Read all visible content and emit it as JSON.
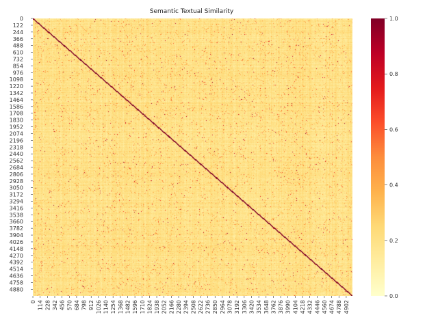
{
  "chart_data": {
    "type": "heatmap",
    "title": "Semantic Textual Similarity",
    "n": 5000,
    "value_range": [
      0.0,
      1.0
    ],
    "colormap": "YlOrRd",
    "colormap_stops": [
      "#ffffcc",
      "#ffeda0",
      "#fed976",
      "#feb24c",
      "#fd8d3c",
      "#fc4e2a",
      "#e31a1c",
      "#bd0026",
      "#800026"
    ],
    "typical_values": {
      "mean": 0.15,
      "min": 0.0,
      "max": 1.0
    },
    "y_tick_labels": [
      "0",
      "122",
      "244",
      "366",
      "488",
      "610",
      "732",
      "854",
      "976",
      "1098",
      "1220",
      "1342",
      "1464",
      "1586",
      "1708",
      "1830",
      "1952",
      "2074",
      "2196",
      "2318",
      "2440",
      "2562",
      "2684",
      "2806",
      "2928",
      "3050",
      "3172",
      "3294",
      "3416",
      "3538",
      "3660",
      "3782",
      "3904",
      "4026",
      "4148",
      "4270",
      "4392",
      "4514",
      "4636",
      "4758",
      "4880"
    ],
    "x_tick_labels": [
      "0",
      "114",
      "228",
      "342",
      "456",
      "570",
      "684",
      "798",
      "912",
      "1026",
      "1140",
      "1254",
      "1368",
      "1482",
      "1596",
      "1710",
      "1824",
      "1938",
      "2052",
      "2166",
      "2280",
      "2394",
      "2508",
      "2622",
      "2736",
      "2850",
      "2964",
      "3078",
      "3192",
      "3306",
      "3420",
      "3534",
      "3648",
      "3762",
      "3876",
      "3990",
      "4104",
      "4218",
      "4332",
      "4446",
      "4560",
      "4674",
      "4788",
      "4902"
    ],
    "colorbar_ticks": [
      "0.0",
      "0.2",
      "0.4",
      "0.6",
      "0.8",
      "1.0"
    ],
    "colorbar_values": [
      0.0,
      0.2,
      0.4,
      0.6,
      0.8,
      1.0
    ],
    "xlabel": "",
    "ylabel": ""
  }
}
